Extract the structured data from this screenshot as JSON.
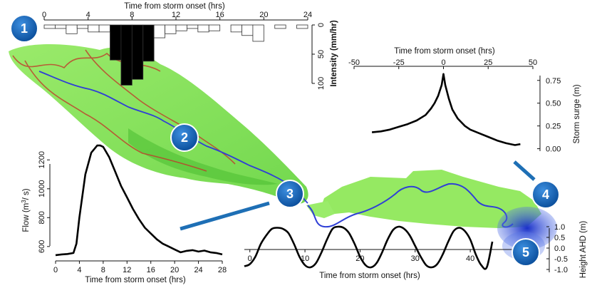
{
  "colors": {
    "badge": "#1565c0",
    "connector": "#1e6fb5",
    "river": "#2f3fd6",
    "catchment_green": "#7ee04a",
    "boundary_red": "#c0392b",
    "curve": "#000000"
  },
  "badges": [
    "1",
    "2",
    "3",
    "4",
    "5"
  ],
  "chart_data": [
    {
      "id": "rainfall",
      "type": "bar",
      "title": "Time from storm onset (hrs)",
      "xlabel": "Time from storm onset (hrs)",
      "ylabel": "Intensity (mm/hr)",
      "xlim": [
        0,
        24
      ],
      "ylim": [
        0,
        100
      ],
      "y_inverted": true,
      "xticks": [
        "0",
        "4",
        "8",
        "12",
        "16",
        "20",
        "24"
      ],
      "yticks": [
        "0",
        "50",
        "100"
      ],
      "bin_width_hrs": 1,
      "x": [
        0,
        1,
        2,
        3,
        4,
        5,
        6,
        7,
        8,
        9,
        10,
        11,
        12,
        13,
        14,
        15,
        16,
        17,
        18,
        19,
        20,
        21,
        22,
        23
      ],
      "values": [
        6,
        6,
        15,
        6,
        12,
        12,
        60,
        103,
        93,
        62,
        22,
        15,
        10,
        6,
        12,
        10,
        0,
        12,
        18,
        28,
        0,
        6,
        0,
        6
      ]
    },
    {
      "id": "storm_surge",
      "type": "line",
      "xlabel": "Time from storm onset (hrs)",
      "ylabel": "Storm surge (m)",
      "xlim": [
        -50,
        50
      ],
      "ylim": [
        -0.05,
        0.85
      ],
      "xticks": [
        "-50",
        "-25",
        "0",
        "25",
        "50"
      ],
      "yticks": [
        "0.00",
        "0.25",
        "0.50",
        "0.75"
      ],
      "x": [
        -40,
        -35,
        -30,
        -25,
        -20,
        -15,
        -10,
        -7,
        -5,
        -3,
        -1,
        0,
        1,
        3,
        5,
        8,
        12,
        15,
        20,
        25,
        30,
        35,
        40,
        43
      ],
      "y": [
        0.18,
        0.19,
        0.21,
        0.24,
        0.27,
        0.31,
        0.37,
        0.44,
        0.5,
        0.58,
        0.7,
        0.82,
        0.7,
        0.55,
        0.43,
        0.33,
        0.25,
        0.21,
        0.17,
        0.13,
        0.09,
        0.06,
        0.04,
        0.05
      ]
    },
    {
      "id": "flow",
      "type": "line",
      "xlabel": "Time from storm onset (hrs)",
      "ylabel": "Flow (m³/ s)",
      "ylabel_parts": [
        "Flow (m",
        "3",
        "/ s)"
      ],
      "xlim": [
        0,
        28
      ],
      "ylim": [
        520,
        1320
      ],
      "xticks": [
        "0",
        "4",
        "8",
        "12",
        "16",
        "20",
        "24",
        "28"
      ],
      "yticks": [
        "600",
        "800",
        "1000",
        "1200"
      ],
      "x": [
        0,
        1,
        2,
        3,
        3.5,
        4,
        5,
        6,
        7,
        7.5,
        8,
        9,
        10,
        11,
        12,
        13,
        14,
        15,
        16,
        17,
        18,
        19,
        20,
        21,
        22,
        23,
        24,
        25,
        26,
        27,
        28
      ],
      "y": [
        540,
        545,
        548,
        555,
        620,
        800,
        1100,
        1250,
        1300,
        1300,
        1290,
        1220,
        1120,
        1020,
        940,
        860,
        790,
        730,
        690,
        650,
        620,
        600,
        580,
        560,
        570,
        575,
        565,
        572,
        560,
        555,
        545
      ]
    },
    {
      "id": "tide",
      "type": "line",
      "xlabel": "Time from storm onset (hrs)",
      "ylabel": "Height AHD (m)",
      "xlim": [
        -1,
        48
      ],
      "ylim": [
        -1.0,
        1.0
      ],
      "xticks": [
        "0",
        "10",
        "20",
        "30",
        "40"
      ],
      "yticks": [
        "1.0",
        "0.5",
        "0.0",
        "-0.5",
        "-1.0"
      ],
      "x": [
        -1,
        0,
        1,
        2,
        3,
        4,
        5,
        6,
        7,
        8,
        9,
        10,
        11,
        12,
        13,
        14,
        15,
        16,
        17,
        18,
        19,
        20,
        21,
        22,
        23,
        24,
        25,
        26,
        27,
        28,
        29,
        30,
        31,
        32,
        33,
        34,
        35,
        36,
        37,
        38,
        39,
        40,
        41,
        42,
        43,
        44
      ],
      "y": [
        -0.85,
        -0.75,
        -0.4,
        0.2,
        0.6,
        0.9,
        0.95,
        0.9,
        0.7,
        0.2,
        -0.4,
        -0.8,
        -0.9,
        -0.7,
        -0.2,
        0.4,
        0.9,
        1.0,
        0.95,
        0.7,
        0.2,
        -0.4,
        -0.8,
        -0.9,
        -0.7,
        -0.2,
        0.4,
        0.85,
        1.0,
        0.9,
        0.6,
        0.1,
        -0.4,
        -0.8,
        -0.9,
        -0.75,
        -0.3,
        0.3,
        0.8,
        0.95,
        0.8,
        0.4,
        -0.3,
        -0.8,
        -0.9,
        0.3
      ]
    }
  ]
}
